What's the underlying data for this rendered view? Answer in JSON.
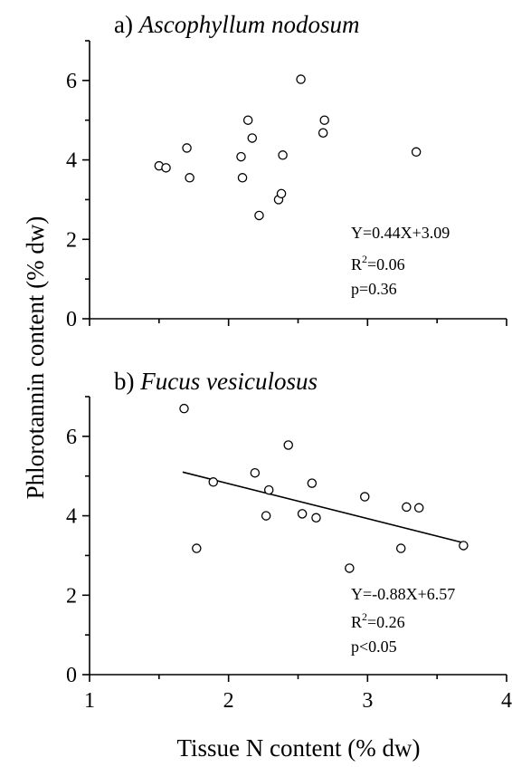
{
  "figure": {
    "ylabel": "Phlorotannin content (% dw)",
    "xlabel": "Tissue N content (% dw)"
  },
  "chart_data": [
    {
      "type": "scatter",
      "panel": "a)",
      "title": "Ascophyllum nodosum",
      "xlim": [
        1,
        4
      ],
      "ylim": [
        0,
        7
      ],
      "x_ticks": [
        "1",
        "2",
        "3",
        "4"
      ],
      "y_ticks": [
        "0",
        "2",
        "4",
        "6"
      ],
      "show_x_tick_labels": false,
      "points": [
        {
          "x": 1.5,
          "y": 3.85
        },
        {
          "x": 1.55,
          "y": 3.8
        },
        {
          "x": 1.7,
          "y": 4.3
        },
        {
          "x": 1.72,
          "y": 3.55
        },
        {
          "x": 2.09,
          "y": 4.08
        },
        {
          "x": 2.1,
          "y": 3.55
        },
        {
          "x": 2.14,
          "y": 5.0
        },
        {
          "x": 2.17,
          "y": 4.55
        },
        {
          "x": 2.22,
          "y": 2.6
        },
        {
          "x": 2.36,
          "y": 3.0
        },
        {
          "x": 2.38,
          "y": 3.15
        },
        {
          "x": 2.39,
          "y": 4.12
        },
        {
          "x": 2.52,
          "y": 6.03
        },
        {
          "x": 2.68,
          "y": 4.68
        },
        {
          "x": 2.69,
          "y": 5.0
        },
        {
          "x": 3.35,
          "y": 4.2
        }
      ],
      "fit_line": null,
      "stats": {
        "equation": "Y=0.44X+3.09",
        "r2_prefix": "R",
        "r2_sup": "2",
        "r2_value": "=0.06",
        "p": "p=0.36"
      }
    },
    {
      "type": "scatter",
      "panel": "b)",
      "title": "Fucus vesiculosus",
      "xlim": [
        1,
        4
      ],
      "ylim": [
        0,
        7
      ],
      "x_ticks": [
        "1",
        "2",
        "3",
        "4"
      ],
      "y_ticks": [
        "0",
        "2",
        "4",
        "6"
      ],
      "show_x_tick_labels": true,
      "points": [
        {
          "x": 1.68,
          "y": 6.7
        },
        {
          "x": 1.77,
          "y": 3.18
        },
        {
          "x": 1.89,
          "y": 4.85
        },
        {
          "x": 2.19,
          "y": 5.08
        },
        {
          "x": 2.27,
          "y": 4.0
        },
        {
          "x": 2.29,
          "y": 4.65
        },
        {
          "x": 2.43,
          "y": 5.78
        },
        {
          "x": 2.53,
          "y": 4.05
        },
        {
          "x": 2.6,
          "y": 4.82
        },
        {
          "x": 2.63,
          "y": 3.95
        },
        {
          "x": 2.87,
          "y": 2.68
        },
        {
          "x": 2.98,
          "y": 4.48
        },
        {
          "x": 3.24,
          "y": 3.18
        },
        {
          "x": 3.28,
          "y": 4.22
        },
        {
          "x": 3.37,
          "y": 4.2
        },
        {
          "x": 3.69,
          "y": 3.25
        }
      ],
      "fit_line": {
        "x": [
          1.67,
          3.69
        ],
        "y": [
          5.1,
          3.32
        ]
      },
      "stats": {
        "equation": "Y=-0.88X+6.57",
        "r2_prefix": "R",
        "r2_sup": "2",
        "r2_value": "=0.26",
        "p": "p<0.05"
      }
    }
  ]
}
